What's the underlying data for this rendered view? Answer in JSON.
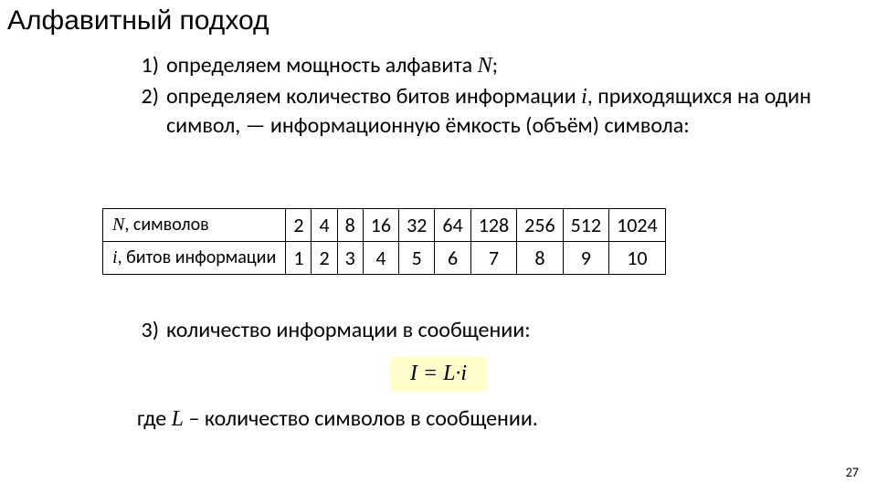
{
  "title": "Алфавитный подход",
  "steps": {
    "n1": "1)",
    "t1_a": "определяем мощность алфавита ",
    "t1_b": "N",
    "t1_c": ";",
    "n2": "2)",
    "t2_a": "определяем количество битов информации ",
    "t2_b": "i",
    "t2_c": ", приходящихся на один символ, — информационную ёмкость (объём) символа:",
    "n3": "3)",
    "t3": "количество информации в сообщении:"
  },
  "table": {
    "row1_label_a": "N",
    "row1_label_b": ", символов",
    "row2_label_a": "i",
    "row2_label_b": ", битов информации",
    "N": [
      "2",
      "4",
      "8",
      "16",
      "32",
      "64",
      "128",
      "256",
      "512",
      "1024"
    ],
    "i": [
      "1",
      "2",
      "3",
      "4",
      "5",
      "6",
      "7",
      "8",
      "9",
      "10"
    ],
    "border_color": "#000000",
    "bg": "#ffffff",
    "fontsize_body": 22,
    "fontsize_head": 20
  },
  "formula": {
    "text": "I = L·i",
    "bg": "#ffffcc",
    "fontsize": 24,
    "font": "Times New Roman"
  },
  "where": {
    "a": "где ",
    "b": "L",
    "c": " – количество символов в сообщении."
  },
  "pagenum": "27",
  "colors": {
    "page_bg": "#ffffff",
    "text": "#000000"
  }
}
